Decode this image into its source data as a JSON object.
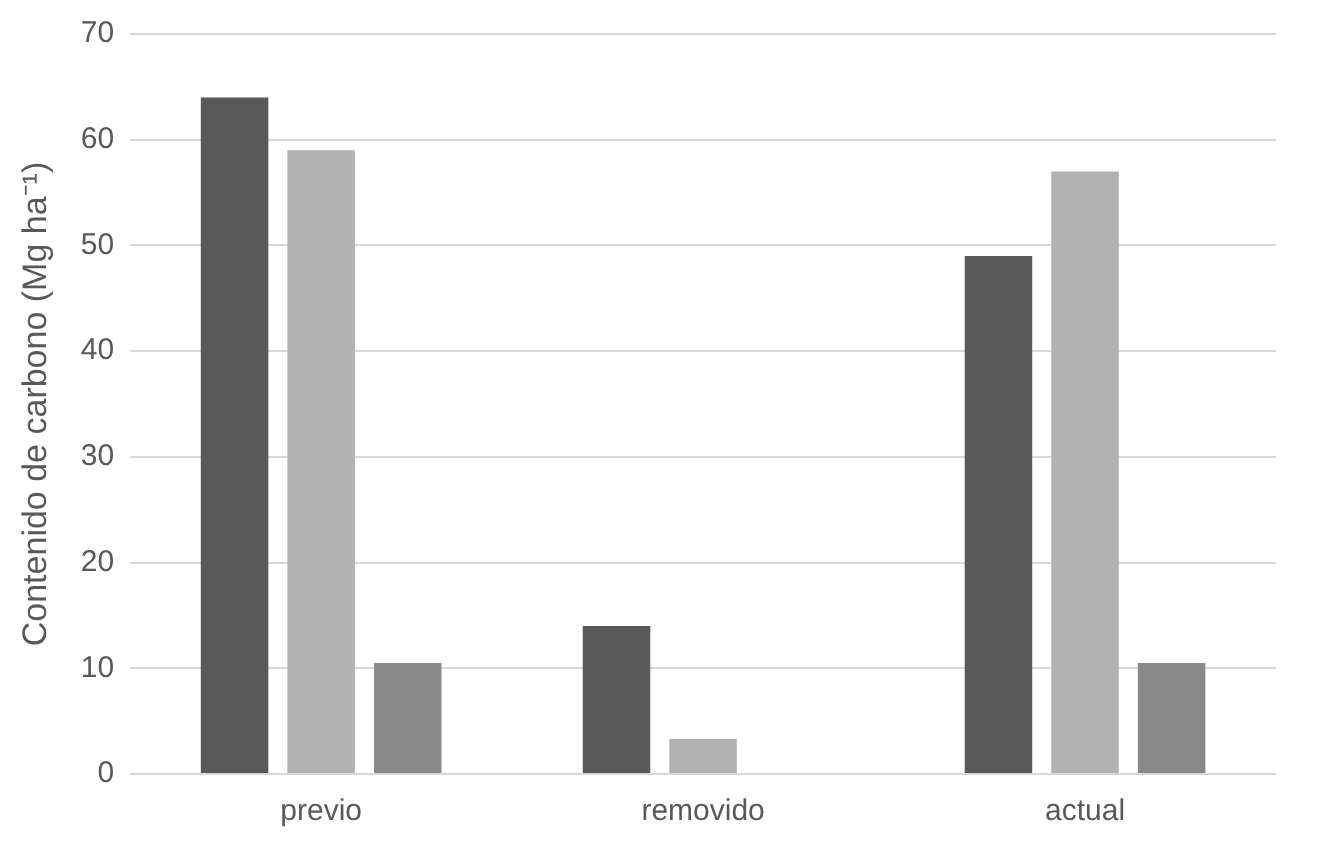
{
  "chart_data": {
    "type": "bar",
    "ylabel": "Contenido de carbono (Mg ha⁻¹)",
    "categories": [
      "previo",
      "removido",
      "actual"
    ],
    "series": [
      {
        "color": "#595959",
        "values": [
          64,
          14,
          49
        ]
      },
      {
        "color": "#b2b2b2",
        "values": [
          59,
          3.3,
          57
        ]
      },
      {
        "color": "#898989",
        "values": [
          10.5,
          null,
          10.5
        ]
      }
    ],
    "ylim": [
      0,
      70
    ],
    "yticks": [
      0,
      10,
      20,
      30,
      40,
      50,
      60,
      70
    ],
    "grid": "y",
    "legend": false
  }
}
